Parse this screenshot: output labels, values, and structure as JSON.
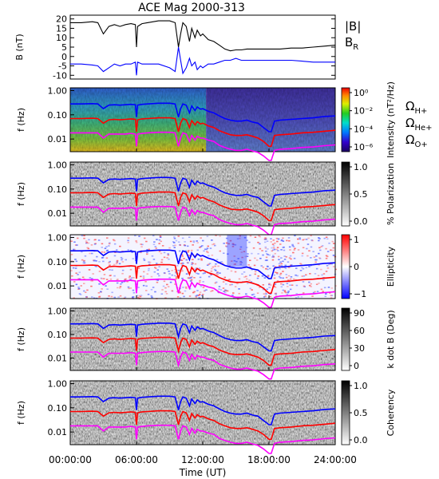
{
  "title": "ACE Mag 2000-313",
  "colors": {
    "b_total": "#000000",
    "b_r": "#0000ff",
    "omega_h": "#0000ff",
    "omega_he": "#ff0000",
    "omega_o": "#ff00ff"
  },
  "chart_data": [
    {
      "type": "line",
      "panel": "magnetic-field",
      "ylabel": "B (nT)",
      "ylim": [
        -12,
        22
      ],
      "yticks": [
        "20",
        "15",
        "10",
        "5",
        "0",
        "-5",
        "-10"
      ],
      "xlim": [
        0,
        24
      ],
      "legend": "right",
      "series": [
        {
          "name": "|B|",
          "color": "#000000",
          "x": [
            0,
            1,
            2,
            2.5,
            3,
            3.5,
            4,
            4.5,
            5,
            5.5,
            5.9,
            6.0,
            6.1,
            6.5,
            7,
            8,
            9,
            9.5,
            9.8,
            10.0,
            10.2,
            10.5,
            10.8,
            11.0,
            11.3,
            11.5,
            11.8,
            12,
            12.5,
            13,
            13.5,
            14,
            14.5,
            15,
            15.5,
            16,
            17,
            18,
            19,
            20,
            21,
            22,
            23,
            24
          ],
          "y": [
            18,
            18,
            18.5,
            18,
            12,
            16,
            17,
            16,
            17,
            17.5,
            17,
            5,
            16,
            17.5,
            18,
            19,
            19,
            18,
            5,
            12,
            18,
            16,
            8,
            15,
            10,
            14,
            11,
            12,
            9,
            8,
            6,
            4,
            3,
            3.5,
            3.5,
            4,
            4,
            4,
            4,
            4.5,
            4.5,
            5,
            5.5,
            6
          ]
        },
        {
          "name": "B_R",
          "color": "#0000ff",
          "x": [
            0,
            1,
            2,
            2.5,
            3,
            3.5,
            4,
            4.5,
            5,
            5.5,
            5.9,
            6.0,
            6.1,
            6.5,
            7,
            8,
            9,
            9.5,
            9.8,
            10.0,
            10.2,
            10.5,
            10.8,
            11.0,
            11.3,
            11.5,
            11.8,
            12,
            12.5,
            13,
            13.5,
            14,
            14.5,
            15,
            15.5,
            16,
            17,
            18,
            19,
            20,
            21,
            22,
            23,
            24
          ],
          "y": [
            -4,
            -4,
            -4.5,
            -5,
            -8,
            -6,
            -4,
            -5,
            -4,
            -4,
            -3,
            -10,
            -3,
            -4,
            -4,
            -4,
            -6,
            -8,
            5,
            -2,
            -9,
            -6,
            -1,
            -5,
            -3,
            -7,
            -5,
            -6,
            -4,
            -4,
            -3,
            -2,
            -2,
            -1,
            -2,
            -2,
            -2,
            -2,
            -2,
            -2,
            -2.5,
            -3,
            -3,
            -3
          ]
        }
      ]
    },
    {
      "type": "heatmap",
      "panel": "intensity",
      "ylabel": "f (Hz)",
      "colorbar_label": "Intensity (nT²/Hz)",
      "colorbar_ticks": [
        "10⁰",
        "10⁻²",
        "10⁻⁴",
        "10⁻⁶"
      ],
      "curve_legend": [
        "Ω_H+",
        "Ω_He+",
        "Ω_O+"
      ]
    },
    {
      "type": "heatmap",
      "panel": "polarization",
      "ylabel": "f (Hz)",
      "colorbar_label": "% Polarization",
      "colorbar_ticks": [
        "1.0",
        "0.5",
        "0.0"
      ]
    },
    {
      "type": "heatmap",
      "panel": "ellipticity",
      "ylabel": "f (Hz)",
      "colorbar_label": "Ellipticity",
      "colorbar_ticks": [
        "1",
        "0",
        "−1"
      ]
    },
    {
      "type": "heatmap",
      "panel": "k-dot-b",
      "ylabel": "f (Hz)",
      "colorbar_label": "k dot B (Deg)",
      "colorbar_ticks": [
        "90",
        "60",
        "30",
        "0"
      ]
    },
    {
      "type": "heatmap",
      "panel": "coherency",
      "ylabel": "f (Hz)",
      "colorbar_label": "Coherency",
      "colorbar_ticks": [
        "1.0",
        "0.5",
        "0.0"
      ]
    }
  ],
  "spectrogram_yticks": [
    "1.00",
    "0.10",
    "0.01"
  ],
  "gyrofrequency_curves": {
    "x_hours": [
      0,
      1,
      2,
      2.5,
      3,
      3.5,
      4,
      4.5,
      5,
      5.5,
      5.9,
      6.0,
      6.1,
      6.5,
      7,
      8,
      9,
      9.5,
      9.8,
      10.0,
      10.2,
      10.5,
      10.8,
      11.0,
      11.3,
      11.5,
      11.8,
      12,
      12.5,
      13,
      13.5,
      14,
      14.5,
      15,
      15.5,
      16,
      16.5,
      17,
      17.5,
      18,
      18.2,
      18.5,
      19,
      20,
      21,
      22,
      23,
      24
    ],
    "omega_h_hz": [
      0.28,
      0.28,
      0.29,
      0.28,
      0.18,
      0.25,
      0.26,
      0.25,
      0.26,
      0.27,
      0.26,
      0.08,
      0.25,
      0.27,
      0.28,
      0.3,
      0.3,
      0.28,
      0.08,
      0.18,
      0.28,
      0.25,
      0.12,
      0.23,
      0.15,
      0.21,
      0.17,
      0.18,
      0.14,
      0.12,
      0.09,
      0.07,
      0.06,
      0.055,
      0.055,
      0.06,
      0.05,
      0.045,
      0.03,
      0.02,
      0.02,
      0.055,
      0.06,
      0.065,
      0.07,
      0.075,
      0.085,
      0.09
    ],
    "omega_he_hz": [
      0.07,
      0.07,
      0.072,
      0.07,
      0.045,
      0.062,
      0.065,
      0.062,
      0.065,
      0.068,
      0.065,
      0.02,
      0.062,
      0.068,
      0.07,
      0.075,
      0.075,
      0.07,
      0.02,
      0.045,
      0.07,
      0.062,
      0.03,
      0.058,
      0.038,
      0.052,
      0.042,
      0.045,
      0.035,
      0.03,
      0.022,
      0.018,
      0.015,
      0.014,
      0.014,
      0.015,
      0.013,
      0.011,
      0.008,
      0.005,
      0.005,
      0.014,
      0.015,
      0.016,
      0.018,
      0.019,
      0.021,
      0.023
    ],
    "omega_o_hz": [
      0.018,
      0.018,
      0.018,
      0.018,
      0.011,
      0.016,
      0.016,
      0.016,
      0.016,
      0.017,
      0.016,
      0.005,
      0.016,
      0.017,
      0.018,
      0.019,
      0.019,
      0.018,
      0.005,
      0.011,
      0.018,
      0.016,
      0.008,
      0.014,
      0.009,
      0.013,
      0.011,
      0.011,
      0.009,
      0.008,
      0.0055,
      0.0045,
      0.0038,
      0.0034,
      0.0034,
      0.0038,
      0.0032,
      0.0028,
      0.002,
      0.0013,
      0.0013,
      0.0034,
      0.0038,
      0.004,
      0.0045,
      0.0047,
      0.0053,
      0.0057
    ]
  },
  "xaxis": {
    "label": "Time (UT)",
    "ticks": [
      "00:00:00",
      "06:00:00",
      "12:00:00",
      "18:00:00",
      "24:00:00"
    ]
  }
}
